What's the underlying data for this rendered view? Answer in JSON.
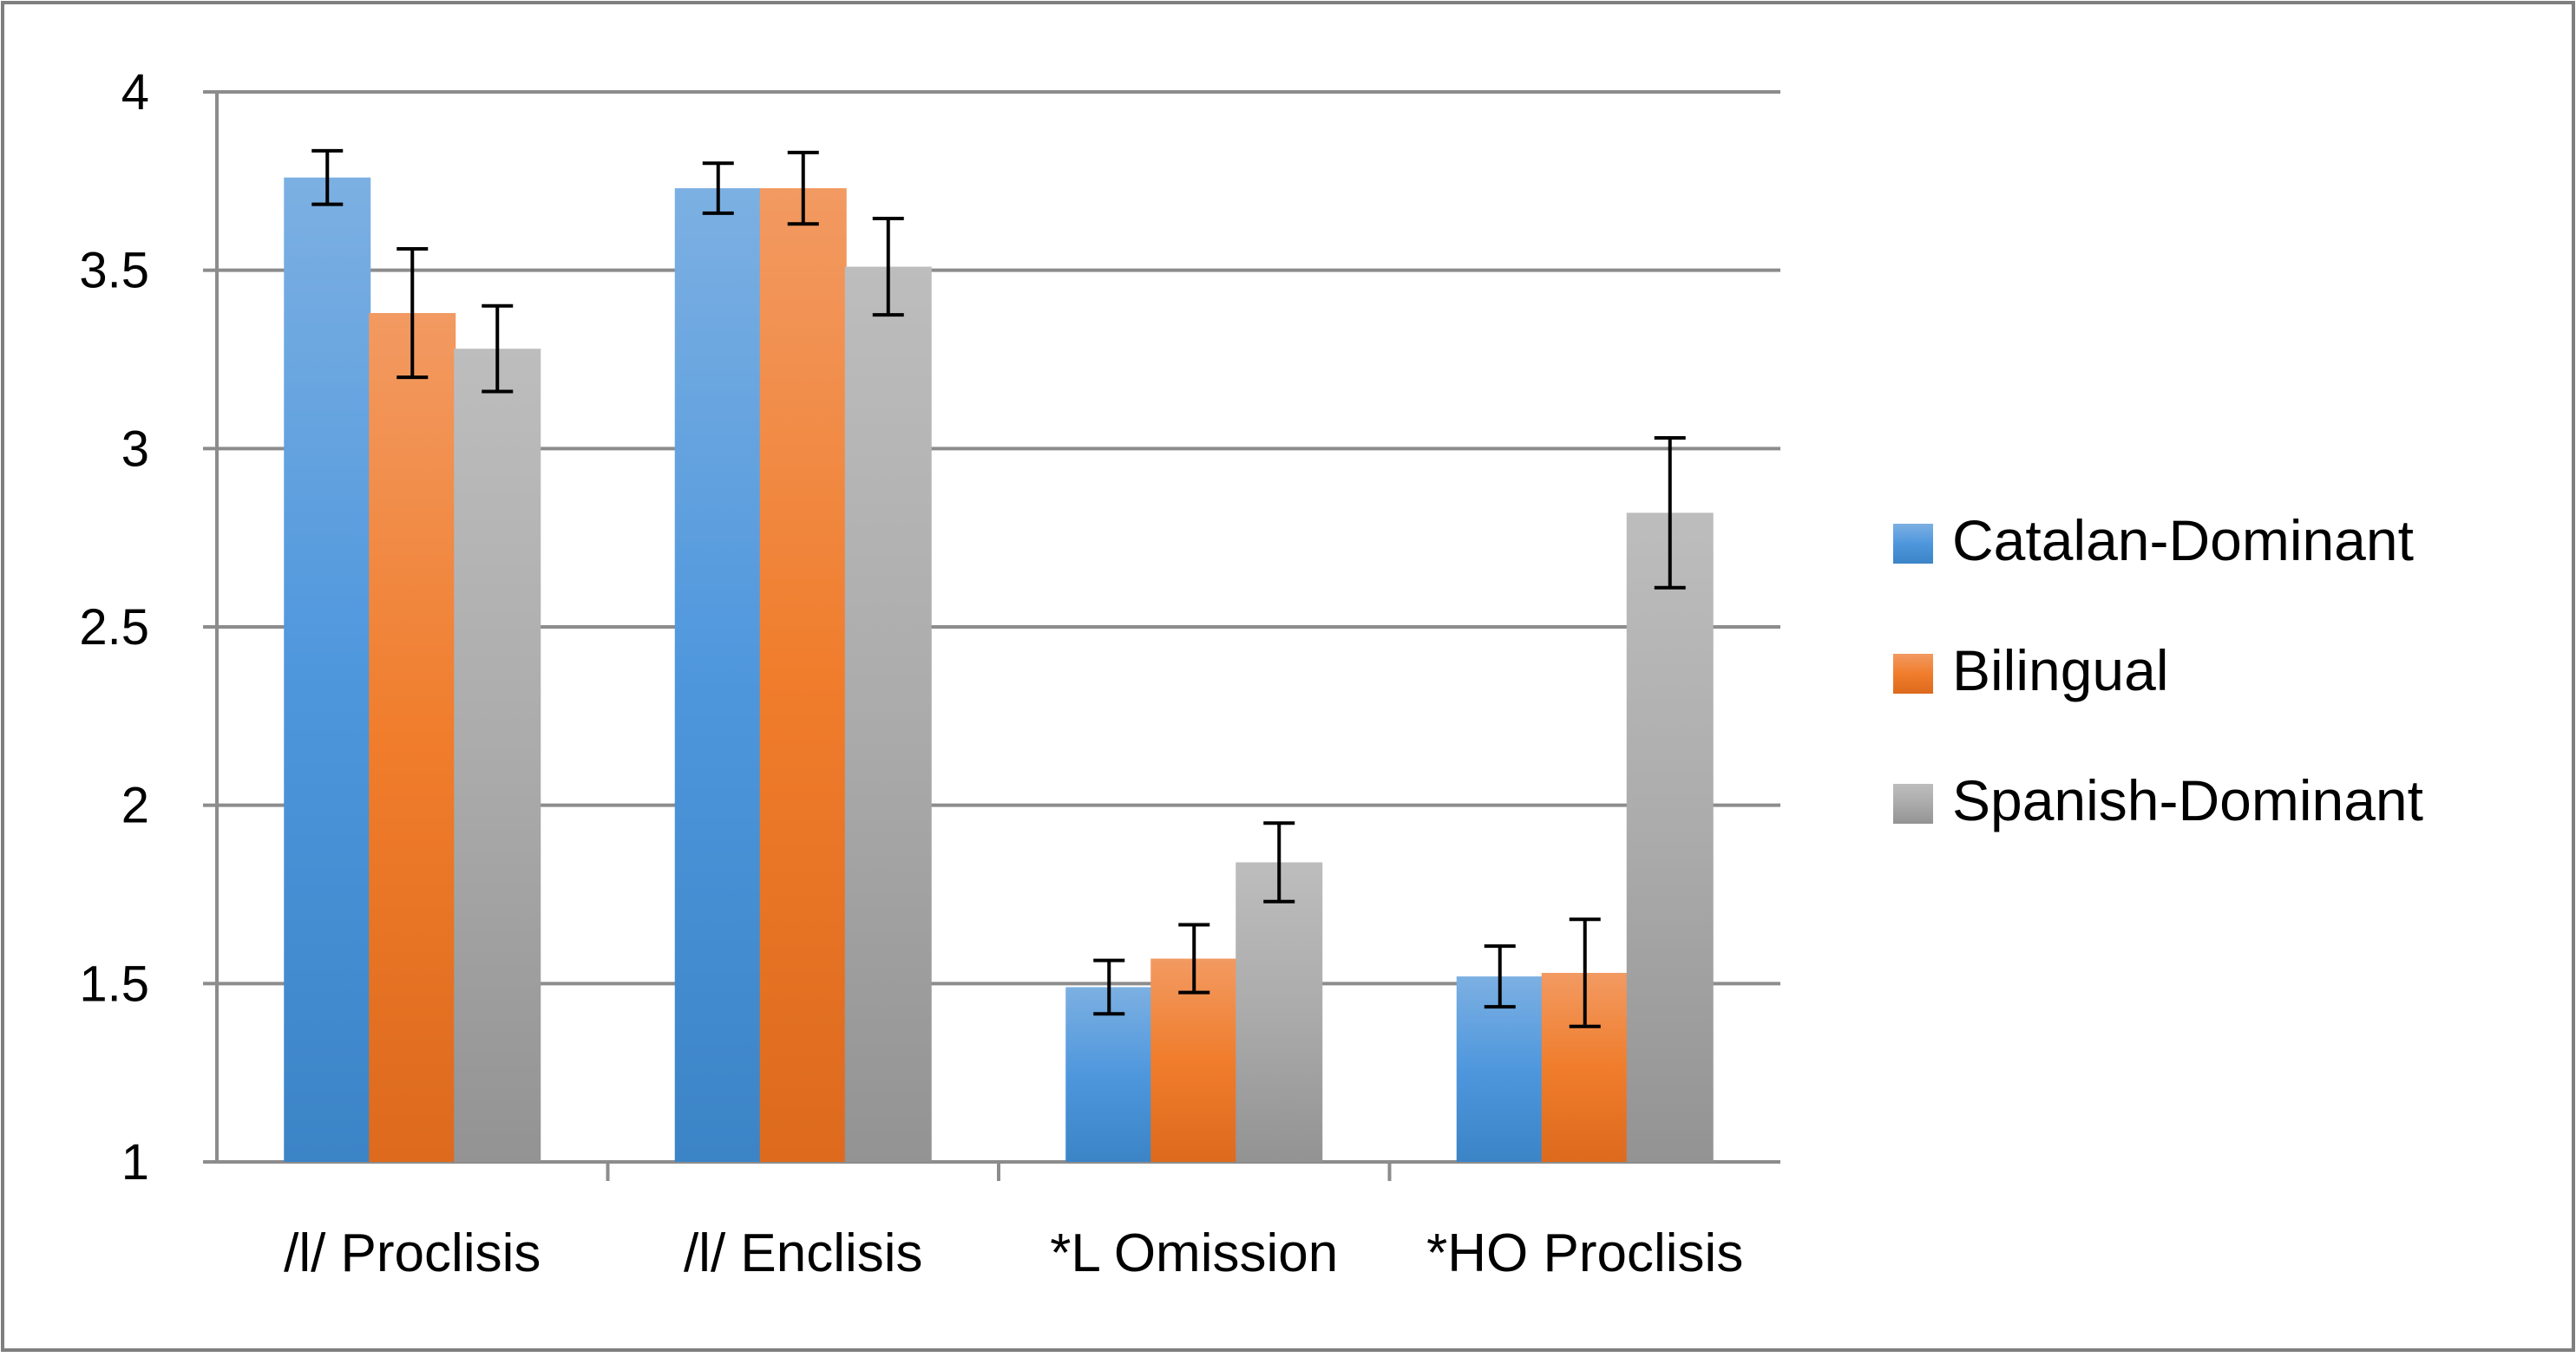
{
  "chart_data": {
    "type": "bar",
    "title": "",
    "xlabel": "",
    "ylabel": "",
    "ylim": [
      1,
      4
    ],
    "yticks": [
      1,
      1.5,
      2,
      2.5,
      3,
      3.5,
      4
    ],
    "ytick_labels": [
      "1",
      "1.5",
      "2",
      "2.5",
      "3",
      "3.5",
      "4"
    ],
    "grid": true,
    "legend_position": "right",
    "categories": [
      "/l/ Proclisis",
      "/l/ Enclisis",
      "*L Omission",
      "*HO Proclisis"
    ],
    "series": [
      {
        "name": "Catalan-Dominant",
        "color": "#5b9bd5",
        "values": [
          3.76,
          3.73,
          1.49,
          1.52
        ],
        "errors": [
          0.075,
          0.07,
          0.075,
          0.085
        ]
      },
      {
        "name": "Bilingual",
        "color": "#ed7d31",
        "values": [
          3.38,
          3.73,
          1.57,
          1.53
        ],
        "errors": [
          0.18,
          0.1,
          0.095,
          0.15
        ]
      },
      {
        "name": "Spanish-Dominant",
        "color": "#a5a5a5",
        "values": [
          3.28,
          3.51,
          1.84,
          2.82
        ],
        "errors": [
          0.12,
          0.135,
          0.11,
          0.21
        ]
      }
    ]
  }
}
